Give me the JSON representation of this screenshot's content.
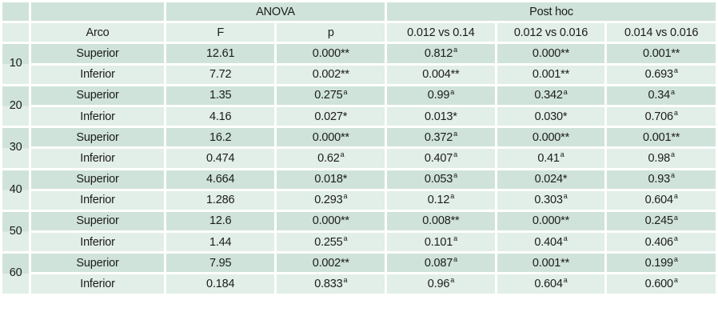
{
  "colors": {
    "row_dark": "#cfe3da",
    "row_light": "#e2eee8",
    "text": "#1c1c1c",
    "gap": "#ffffff"
  },
  "table": {
    "header": {
      "anova": "ANOVA",
      "post_hoc": "Post hoc",
      "arco": "Arco",
      "f": "F",
      "p": "p",
      "cmp1": "0.012 vs 0.14",
      "cmp2": "0.012 vs 0.016",
      "cmp3": "0.014 vs 0.016"
    },
    "groups": [
      {
        "id": "10",
        "rows": [
          {
            "arco": "Superior",
            "f": "12.61",
            "p": "0.000**",
            "c1": "0.812^a",
            "c2": "0.000**",
            "c3": "0.001**"
          },
          {
            "arco": "Inferior",
            "f": "7.72",
            "p": "0.002**",
            "c1": "0.004**",
            "c2": "0.001**",
            "c3": "0.693^a"
          }
        ]
      },
      {
        "id": "20",
        "rows": [
          {
            "arco": "Superior",
            "f": "1.35",
            "p": "0.275^a",
            "c1": "0.99^a",
            "c2": "0.342^a",
            "c3": "0.34^a"
          },
          {
            "arco": "Inferior",
            "f": "4.16",
            "p": "0.027*",
            "c1": "0.013*",
            "c2": "0.030*",
            "c3": "0.706^a"
          }
        ]
      },
      {
        "id": "30",
        "rows": [
          {
            "arco": "Superior",
            "f": "16.2",
            "p": "0.000**",
            "c1": "0.372^a",
            "c2": "0.000**",
            "c3": "0.001**"
          },
          {
            "arco": "Inferior",
            "f": "0.474",
            "p": "0.62^a",
            "c1": "0.407^a",
            "c2": "0.41^a",
            "c3": "0.98^a"
          }
        ]
      },
      {
        "id": "40",
        "rows": [
          {
            "arco": "Superior",
            "f": "4.664",
            "p": "0.018*",
            "c1": "0.053^a",
            "c2": "0.024*",
            "c3": "0.93^a"
          },
          {
            "arco": "Inferior",
            "f": "1.286",
            "p": "0.293^a",
            "c1": "0.12^a",
            "c2": "0.303^a",
            "c3": "0.604^a"
          }
        ]
      },
      {
        "id": "50",
        "rows": [
          {
            "arco": "Superior",
            "f": "12.6",
            "p": "0.000**",
            "c1": "0.008**",
            "c2": "0.000**",
            "c3": "0.245^a"
          },
          {
            "arco": "Inferior",
            "f": "1.44",
            "p": "0.255^a",
            "c1": "0.101^a",
            "c2": "0.404^a",
            "c3": "0.406^a"
          }
        ]
      },
      {
        "id": "60",
        "rows": [
          {
            "arco": "Superior",
            "f": "7.95",
            "p": "0.002**",
            "c1": "0.087^a",
            "c2": "0.001**",
            "c3": "0.199^a"
          },
          {
            "arco": "Inferior",
            "f": "0.184",
            "p": "0.833^a",
            "c1": "0.96^a",
            "c2": "0.604^a",
            "c3": "0.600^a"
          }
        ]
      }
    ]
  }
}
